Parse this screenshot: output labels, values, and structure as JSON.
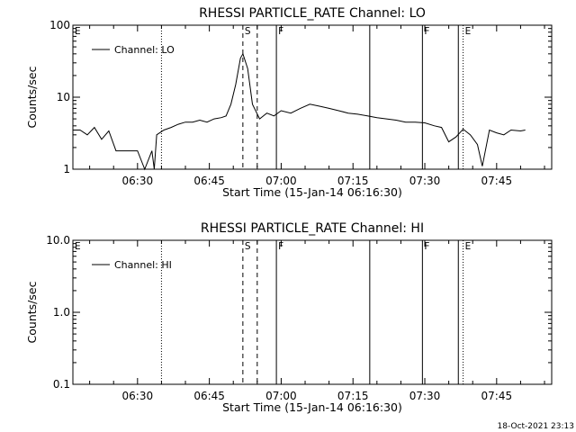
{
  "footer": {
    "timestamp": "18-Oct-2021 23:13"
  },
  "chart_data": [
    {
      "type": "line",
      "title": "RHESSI PARTICLE_RATE Channel: LO",
      "xlabel": "Start Time (15-Jan-14 06:16:30)",
      "ylabel": "Counts/sec",
      "y_scale": "log",
      "ylim": [
        1,
        100
      ],
      "xlim": [
        "06:16:30",
        "07:56:30"
      ],
      "x_ticks": [
        "06:30",
        "06:45",
        "07:00",
        "07:15",
        "07:30",
        "07:45"
      ],
      "y_ticks": [
        "1",
        "10",
        "100"
      ],
      "legend": {
        "position": "top-left",
        "entries": [
          "Channel: LO"
        ]
      },
      "grid": false,
      "series": [
        {
          "name": "Channel: LO",
          "x": [
            "06:16:30",
            "06:18:00",
            "06:19:30",
            "06:21:00",
            "06:22:30",
            "06:24:00",
            "06:25:30",
            "06:27:00",
            "06:28:30",
            "06:30:00",
            "06:31:30",
            "06:33:00",
            "06:33:30",
            "06:34:00",
            "06:35:30",
            "06:37:00",
            "06:38:30",
            "06:40:00",
            "06:41:30",
            "06:43:00",
            "06:44:30",
            "06:46:00",
            "06:47:30",
            "06:48:30",
            "06:49:30",
            "06:50:30",
            "06:51:30",
            "06:52:00",
            "06:53:00",
            "06:54:00",
            "06:55:30",
            "06:57:00",
            "06:58:30",
            "07:00:00",
            "07:02:00",
            "07:04:00",
            "07:06:00",
            "07:08:00",
            "07:10:00",
            "07:12:00",
            "07:14:00",
            "07:16:00",
            "07:18:00",
            "07:20:00",
            "07:22:00",
            "07:24:00",
            "07:26:00",
            "07:28:00",
            "07:30:00",
            "07:32:00",
            "07:33:30",
            "07:35:00",
            "07:36:30",
            "07:38:00",
            "07:39:30",
            "07:41:00",
            "07:42:00",
            "07:43:30",
            "07:45:00",
            "07:46:30",
            "07:48:00",
            "07:50:00",
            "07:51:00"
          ],
          "values": [
            3.5,
            3.5,
            3.0,
            3.8,
            2.6,
            3.4,
            1.8,
            1.8,
            1.8,
            1.8,
            1.0,
            1.8,
            1.0,
            3.0,
            3.5,
            3.8,
            4.2,
            4.5,
            4.5,
            4.8,
            4.5,
            5.0,
            5.2,
            5.5,
            8.0,
            15,
            35,
            40,
            25,
            8,
            5,
            6,
            5.5,
            6.5,
            6.0,
            7.0,
            8.0,
            7.5,
            7.0,
            6.5,
            6.0,
            5.8,
            5.5,
            5.2,
            5.0,
            4.8,
            4.5,
            4.5,
            4.4,
            4.0,
            3.8,
            2.4,
            2.8,
            3.6,
            3.0,
            2.2,
            1.1,
            3.5,
            3.2,
            3.0,
            3.5,
            3.4,
            3.5
          ]
        }
      ],
      "annotations": [
        {
          "label": "E",
          "x": "06:16:30",
          "style": "dotted"
        },
        {
          "label": "",
          "x": "06:35:00",
          "style": "dotted"
        },
        {
          "label": "S",
          "x": "06:52:00",
          "style": "dashed"
        },
        {
          "label": "",
          "x": "06:55:00",
          "style": "dashed"
        },
        {
          "label": "F",
          "x": "06:59:00",
          "style": "solid"
        },
        {
          "label": "",
          "x": "07:18:30",
          "style": "solid"
        },
        {
          "label": "F",
          "x": "07:29:30",
          "style": "solid"
        },
        {
          "label": "",
          "x": "07:37:00",
          "style": "solid"
        },
        {
          "label": "E",
          "x": "07:38:00",
          "style": "dotted"
        },
        {
          "label": "",
          "x": "07:56:30",
          "style": "dotted"
        }
      ]
    },
    {
      "type": "line",
      "title": "RHESSI PARTICLE_RATE Channel: HI",
      "xlabel": "Start Time (15-Jan-14 06:16:30)",
      "ylabel": "Counts/sec",
      "y_scale": "log",
      "ylim": [
        0.1,
        10.0
      ],
      "xlim": [
        "06:16:30",
        "07:56:30"
      ],
      "x_ticks": [
        "06:30",
        "06:45",
        "07:00",
        "07:15",
        "07:30",
        "07:45"
      ],
      "y_ticks": [
        "0.1",
        "1.0",
        "10.0"
      ],
      "legend": {
        "position": "top-left",
        "entries": [
          "Channel: HI"
        ]
      },
      "grid": false,
      "series": [
        {
          "name": "Channel: HI",
          "x": [],
          "values": []
        }
      ],
      "annotations": [
        {
          "label": "E",
          "x": "06:16:30",
          "style": "dotted"
        },
        {
          "label": "",
          "x": "06:35:00",
          "style": "dotted"
        },
        {
          "label": "S",
          "x": "06:52:00",
          "style": "dashed"
        },
        {
          "label": "",
          "x": "06:55:00",
          "style": "dashed"
        },
        {
          "label": "F",
          "x": "06:59:00",
          "style": "solid"
        },
        {
          "label": "",
          "x": "07:18:30",
          "style": "solid"
        },
        {
          "label": "F",
          "x": "07:29:30",
          "style": "solid"
        },
        {
          "label": "",
          "x": "07:37:00",
          "style": "solid"
        },
        {
          "label": "E",
          "x": "07:38:00",
          "style": "dotted"
        },
        {
          "label": "",
          "x": "07:56:30",
          "style": "dotted"
        }
      ]
    }
  ]
}
